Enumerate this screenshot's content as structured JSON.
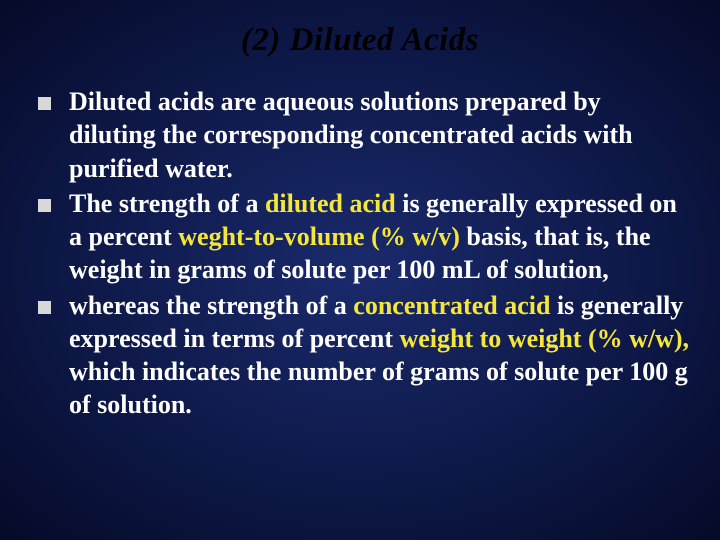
{
  "title": "(2) Diluted Acids",
  "background_gradient": {
    "center": "#1a2a6c",
    "mid": "#0d1745",
    "edge": "#050a28"
  },
  "title_color": "#000000",
  "title_fontsize": 33,
  "title_style": "italic bold",
  "body_text_color": "#ffffff",
  "body_fontsize": 26,
  "highlight_color": "#f5e63a",
  "bullet_marker_color": "#d8d8d8",
  "bullet_marker_size": 13,
  "bullets": [
    {
      "pre1": "Diluted acids are aqueous solutions prepared by diluting the corresponding concentrated acids with purified water.",
      "hl1": "",
      "mid1": "",
      "hl2": "",
      "post1": ""
    },
    {
      "pre1": "The strength of a ",
      "hl1": "diluted acid",
      "mid1": " is generally expressed on a percent ",
      "hl2": "weght-to-volume (% w/v)",
      "post1": " basis, that is, the weight in grams of solute per 100 mL of solution,"
    },
    {
      "pre1": "whereas the strength of a ",
      "hl1": "concentrated acid",
      "mid1": " is generally expressed in terms of percent ",
      "hl2": "weight to weight (% w/w),",
      "post1": " which indicates the number of grams of solute per 100 g of solution."
    }
  ]
}
